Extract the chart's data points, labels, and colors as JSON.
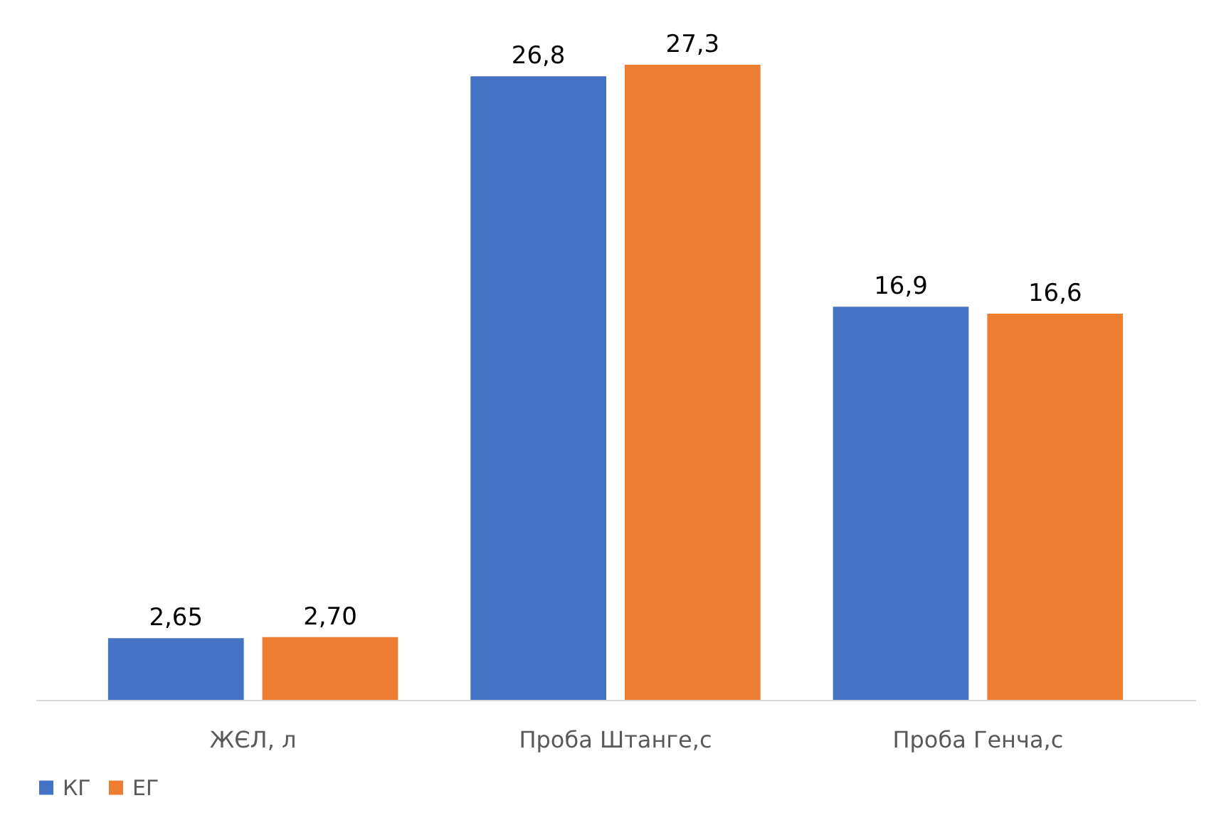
{
  "chart_data": {
    "type": "bar",
    "categories": [
      "ЖЄЛ, л",
      "Проба Штанге,с",
      "Проба Генча,с"
    ],
    "series": [
      {
        "name": "КГ",
        "color": "#4472c4",
        "values": [
          2.65,
          26.8,
          16.9
        ],
        "value_labels": [
          "2,65",
          "26,8",
          "16,9"
        ]
      },
      {
        "name": "ЕГ",
        "color": "#ed7d31",
        "values": [
          2.7,
          27.3,
          16.6
        ],
        "value_labels": [
          "2,70",
          "27,3",
          "16,6"
        ]
      }
    ],
    "legend": "bottom",
    "grid": false
  }
}
